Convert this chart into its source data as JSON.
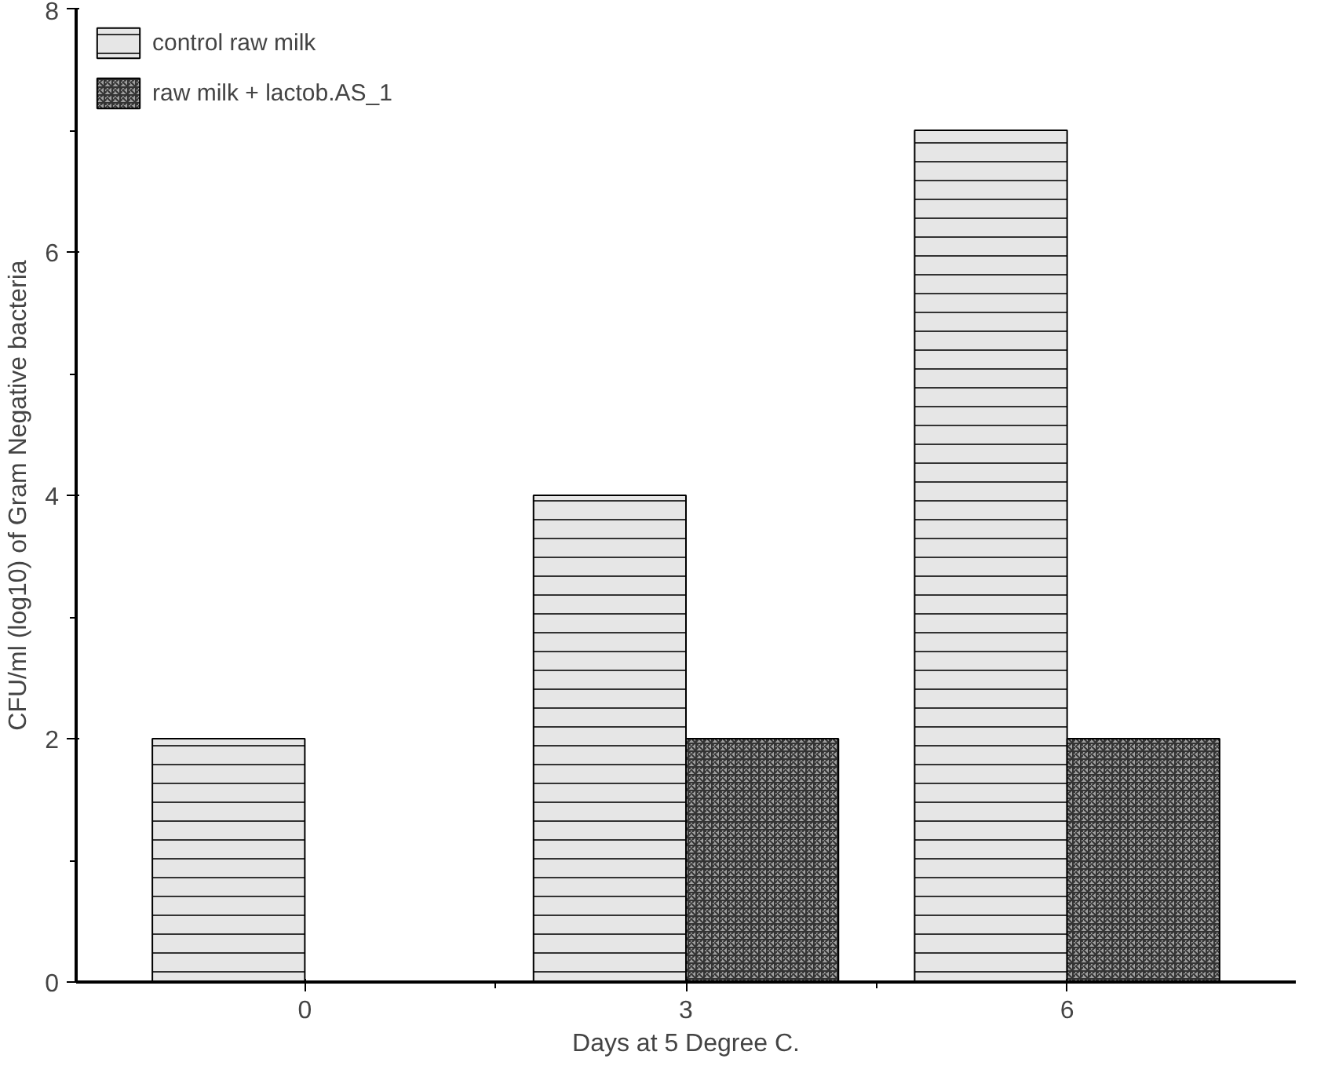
{
  "chart_data": {
    "type": "bar",
    "xlabel": "Days at 5 Degree C.",
    "ylabel": "CFU/ml (log10) of Gram Negative bacteria",
    "categories": [
      "0",
      "3",
      "6"
    ],
    "series": [
      {
        "name": "control raw milk",
        "color": "#e6e6e6",
        "values": [
          2.0,
          4.0,
          7.0
        ]
      },
      {
        "name": "raw milk + lactob.AS_1",
        "color": "#a0a0a0",
        "values": [
          null,
          2.0,
          2.0
        ]
      }
    ],
    "ylim": [
      0,
      8
    ],
    "yticks": [
      0,
      2,
      4,
      6,
      8
    ],
    "grid": false,
    "legend": "top left"
  }
}
